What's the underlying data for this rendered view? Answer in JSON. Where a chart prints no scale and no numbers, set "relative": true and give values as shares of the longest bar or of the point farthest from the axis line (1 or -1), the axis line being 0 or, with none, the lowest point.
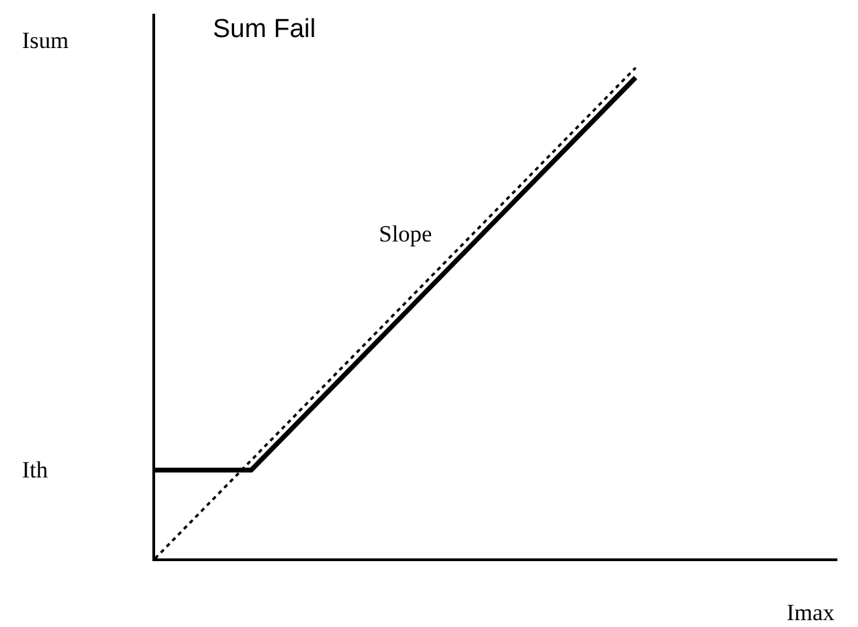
{
  "chart_data": {
    "type": "line",
    "relative": true,
    "title": "Sum Fail",
    "xlabel": "Imax",
    "ylabel": "Isum",
    "categories": [
      null,
      null,
      null,
      null,
      null,
      null,
      null,
      null
    ],
    "series": [
      {
        "color": "#000000",
        "line_style": "solid",
        "values": [
          0.18,
          0.18,
          0.38,
          0.58,
          0.78,
          0.98,
          null,
          null
        ]
      },
      {
        "color": "#000000",
        "line_style": "dotted",
        "values": [
          0,
          0.2,
          0.4,
          0.6,
          0.8,
          1.0,
          null,
          null
        ]
      }
    ],
    "annotations": [
      "Ith",
      "Slope"
    ],
    "marker": "none"
  }
}
